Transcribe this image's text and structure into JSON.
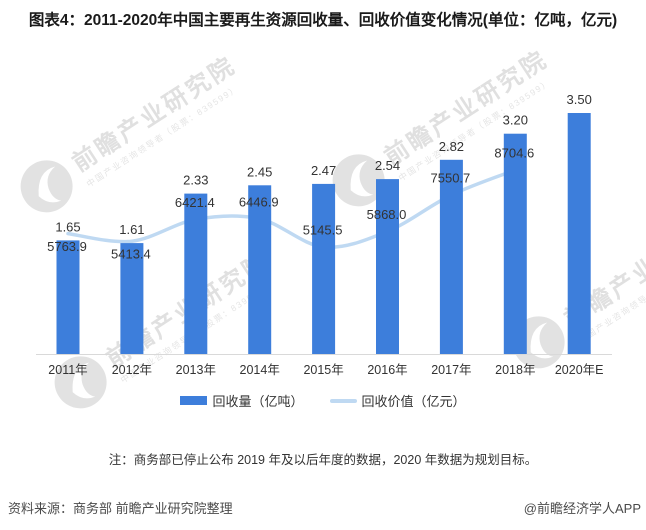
{
  "title": "图表4：2011-2020年中国主要再生资源回收量、回收价值变化情况(单位：亿吨，亿元)",
  "note": "注：商务部已停止公布 2019 年及以后年度的数据，2020 年数据为规划目标。",
  "footer": {
    "source": "资料来源：商务部 前瞻产业研究院整理",
    "credit": "@前瞻经济学人APP"
  },
  "watermark": {
    "big_text": "前瞻产业研究院",
    "small_text": "中国产业咨询领导者（股票：839599）",
    "logo": "qianzhan-bird-logo"
  },
  "colors": {
    "bar": "#3D7EDB",
    "line": "#BFD9F2",
    "axis": "#D9D9D9",
    "label": "#333333",
    "tick": "#333333",
    "watermark": "#DBDBDB"
  },
  "chart_data": {
    "type": "combo: bar + smooth line",
    "categories": [
      "2011年",
      "2012年",
      "2013年",
      "2014年",
      "2015年",
      "2016年",
      "2017年",
      "2018年",
      "2020年E"
    ],
    "series": [
      {
        "name": "回收量（亿吨）",
        "type": "bar",
        "values": [
          1.65,
          1.61,
          2.33,
          2.45,
          2.47,
          2.54,
          2.82,
          3.2,
          3.5
        ],
        "labels": [
          "1.65",
          "1.61",
          "2.33",
          "2.45",
          "2.47",
          "2.54",
          "2.82",
          "3.20",
          "3.50"
        ]
      },
      {
        "name": "回收价值（亿元）",
        "type": "line",
        "values": [
          5763.9,
          5413.4,
          6421.4,
          6446.9,
          5145.5,
          5868.0,
          7550.7,
          8704.6
        ],
        "labels": [
          "5763.9",
          "5413.4",
          "6421.4",
          "6446.9",
          "5145.5",
          "5868.0",
          "7550.7",
          "8704.6"
        ],
        "label_placement": [
          "below",
          "below",
          "above",
          "above",
          "above",
          "above",
          "above",
          "above"
        ],
        "note": "line series ends at 2018; no value for 2020E"
      }
    ],
    "legend": {
      "position": "bottom",
      "items": [
        "回收量（亿吨）",
        "回收价值（亿元）"
      ]
    },
    "axes": {
      "x_axis_visible": true,
      "y_axis_visible": false,
      "gridlines": false,
      "bar_axis_range": [
        0,
        4
      ],
      "value_axis_labels_hidden": true
    }
  }
}
